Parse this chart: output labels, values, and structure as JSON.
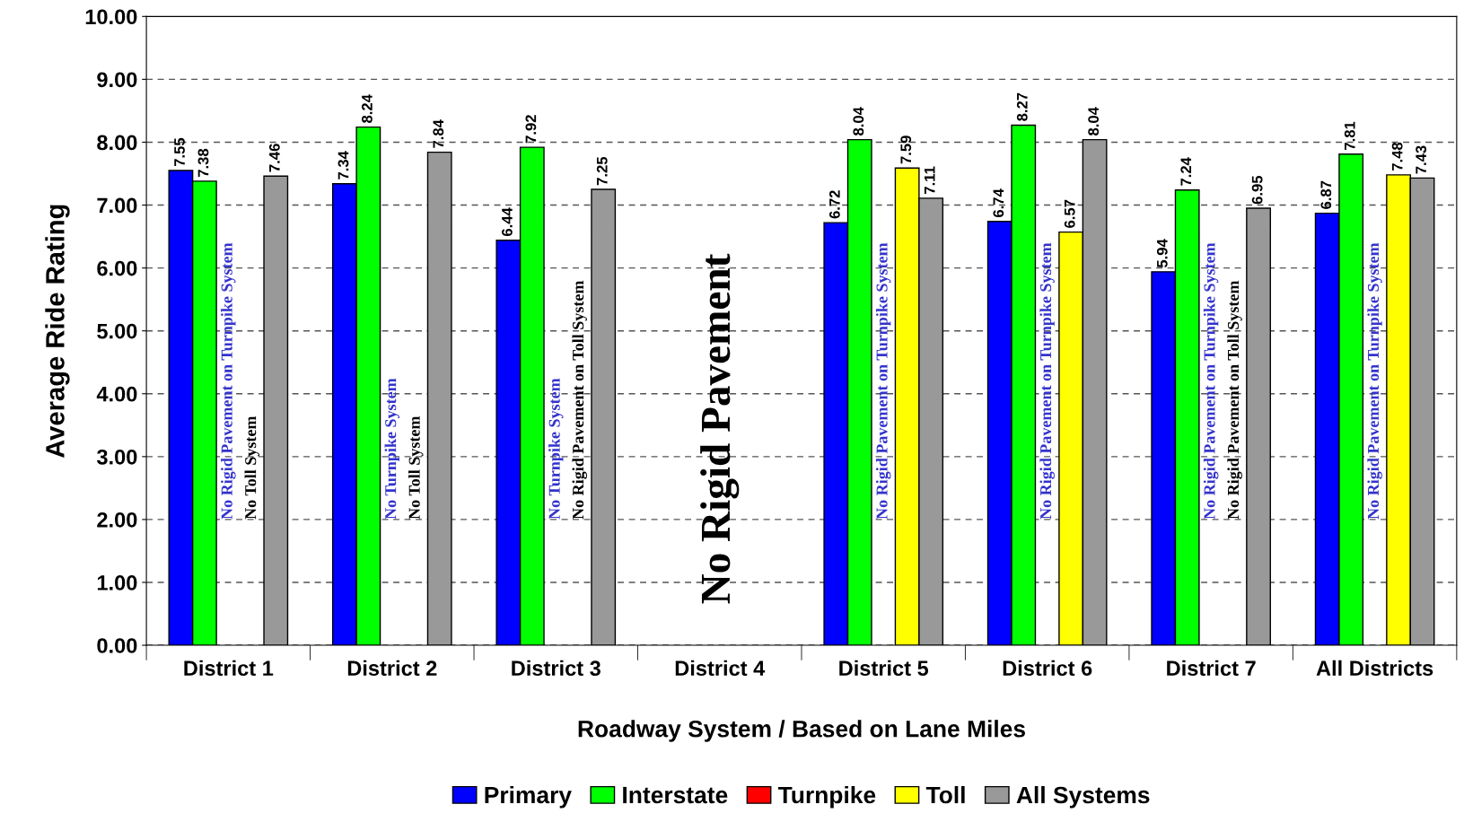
{
  "chart_data": {
    "type": "bar",
    "xlabel": "Roadway System / Based on Lane Miles",
    "ylabel": "Average Ride Rating",
    "categories": [
      "District 1",
      "District 2",
      "District 3",
      "District 4",
      "District 5",
      "District 6",
      "District 7",
      "All Districts"
    ],
    "series": [
      {
        "name": "Primary",
        "color": "#0000ff",
        "values": [
          7.55,
          7.34,
          6.44,
          null,
          6.72,
          6.74,
          5.94,
          6.87
        ]
      },
      {
        "name": "Interstate",
        "color": "#00ff00",
        "values": [
          7.38,
          8.24,
          7.92,
          null,
          8.04,
          8.27,
          7.24,
          7.81
        ]
      },
      {
        "name": "Turnpike",
        "color": "#ff0000",
        "values": [
          null,
          null,
          null,
          null,
          null,
          null,
          null,
          null
        ]
      },
      {
        "name": "Toll",
        "color": "#ffff00",
        "values": [
          null,
          null,
          null,
          null,
          7.59,
          6.57,
          null,
          7.48
        ]
      },
      {
        "name": "All Systems",
        "color": "#999999",
        "values": [
          7.46,
          7.84,
          7.25,
          null,
          7.11,
          8.04,
          6.95,
          7.43
        ]
      }
    ],
    "ylim": [
      0,
      10
    ],
    "yticks": [
      {
        "value": 0,
        "label": "0.00"
      },
      {
        "value": 1,
        "label": "1.00"
      },
      {
        "value": 2,
        "label": "2.00"
      },
      {
        "value": 3,
        "label": "3.00"
      },
      {
        "value": 4,
        "label": "4.00"
      },
      {
        "value": 5,
        "label": "5.00"
      },
      {
        "value": 6,
        "label": "6.00"
      },
      {
        "value": 7,
        "label": "7.00"
      },
      {
        "value": 8,
        "label": "8.00"
      },
      {
        "value": 9,
        "label": "9.00"
      },
      {
        "value": 10,
        "label": "10.00"
      }
    ],
    "grid": "y",
    "legend": "bottom",
    "data_labels": true,
    "annotations": [
      "No Rigid Pavement on Turnpike System",
      "No Toll System",
      "No Turnpike System",
      "No Toll System",
      "No Turnpike System",
      "No Rigid Pavement on Toll System",
      "No Rigid Pavement",
      "No Rigid Pavement on Turnpike System",
      "No Rigid Pavement on Turnpike System",
      "No Rigid Pavement on Turnpike System",
      "No Rigid Pavement on Toll System",
      "No Rigid Pavement on Turnpike System"
    ]
  }
}
